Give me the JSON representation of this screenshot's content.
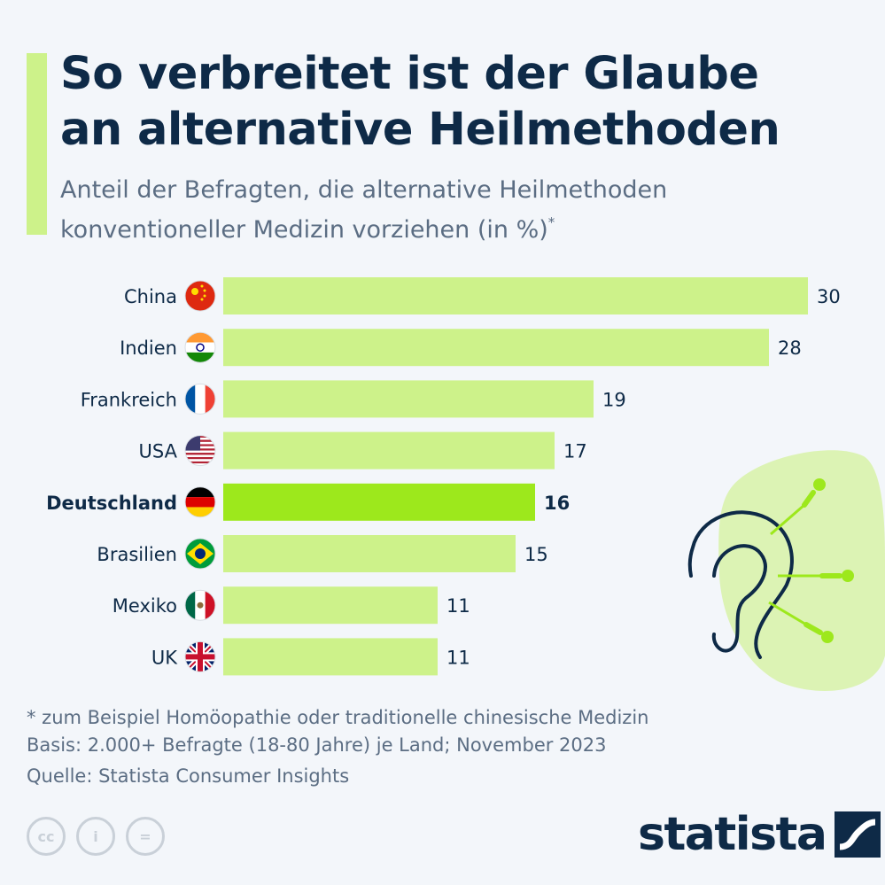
{
  "header": {
    "title_line1": "So verbreitet ist der Glaube",
    "title_line2": "an alternative Heilmethoden",
    "subtitle_line1": "Anteil der Befragten, die alternative Heilmethoden",
    "subtitle_line2": "konventioneller Medizin vorziehen (in %)",
    "subtitle_mark": "*"
  },
  "chart_data": {
    "type": "bar",
    "orientation": "horizontal",
    "categories": [
      "China",
      "Indien",
      "Frankreich",
      "USA",
      "Deutschland",
      "Brasilien",
      "Mexiko",
      "UK"
    ],
    "values": [
      30,
      28,
      19,
      17,
      16,
      15,
      11,
      11
    ],
    "highlight": "Deutschland",
    "xlim": [
      0,
      30
    ],
    "grid": false,
    "colors": {
      "bar": "#cdf28a",
      "highlight": "#9de81c",
      "label": "#0e2a47"
    },
    "flags": [
      "china-flag",
      "india-flag",
      "france-flag",
      "usa-flag",
      "germany-flag",
      "brazil-flag",
      "mexico-flag",
      "uk-flag"
    ]
  },
  "footer": {
    "note": "* zum Beispiel Homöopathie oder traditionelle chinesische Medizin",
    "basis": "Basis: 2.000+ Befragte (18-80 Jahre) je Land; November 2023",
    "source": "Quelle: Statista Consumer Insights",
    "cc_labels": [
      "cc",
      "i",
      "="
    ],
    "brand": "statista"
  }
}
